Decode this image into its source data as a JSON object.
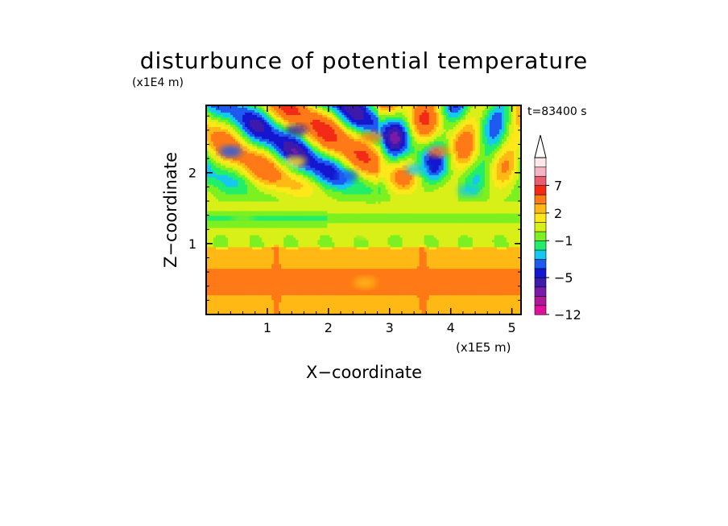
{
  "chart_data": {
    "type": "heatmap",
    "title": "disturbunce of potential temperature",
    "xlabel": "X−coordinate",
    "ylabel": "Z−coordinate",
    "x_unit": "(x1E5 m)",
    "y_unit": "(x1E4 m)",
    "time_label": "t=83400 s",
    "xlim": [
      0,
      5.15
    ],
    "ylim": [
      0,
      2.95
    ],
    "x_ticks": [
      "1",
      "2",
      "3",
      "4",
      "5"
    ],
    "y_ticks": [
      "1",
      "2"
    ],
    "colorbar": {
      "levels": [
        -12,
        -10,
        -8,
        -6,
        -5,
        -4,
        -3,
        -2,
        -1,
        0,
        1,
        2,
        3,
        5,
        7,
        9,
        11
      ],
      "labels": [
        "7",
        "2",
        "−1",
        "−5",
        "−12"
      ],
      "colors": [
        "#e0109a",
        "#b0189c",
        "#7a1aa8",
        "#3d1aaa",
        "#1416d0",
        "#1e5af0",
        "#16c8f0",
        "#22ee6a",
        "#7cf020",
        "#d8f018",
        "#ffe81a",
        "#ffb814",
        "#ff7a16",
        "#f22a16",
        "#e85e6e",
        "#f4b4c4",
        "#ffe8e8"
      ],
      "extend_top": true
    },
    "field_features": [
      {
        "x": 1.45,
        "z": 2.15,
        "value": 1
      },
      {
        "x": 1.48,
        "z": 2.6,
        "value": -6
      },
      {
        "x": 0.4,
        "z": 2.3,
        "value": -4
      },
      {
        "x": 2.3,
        "z": 1.95,
        "value": -4
      },
      {
        "x": 3.45,
        "z": 2.05,
        "value": -3
      },
      {
        "x": 4.3,
        "z": 1.75,
        "value": -3
      },
      {
        "x": 2.7,
        "z": 2.5,
        "value": 4
      },
      {
        "x": 3.8,
        "z": 2.3,
        "value": 3
      },
      {
        "x": 2.6,
        "z": 1.15,
        "value": 0
      },
      {
        "x": 2.6,
        "z": 0.45,
        "value": 2
      },
      {
        "x": 0.6,
        "z": 1.35,
        "value": -1
      }
    ]
  }
}
